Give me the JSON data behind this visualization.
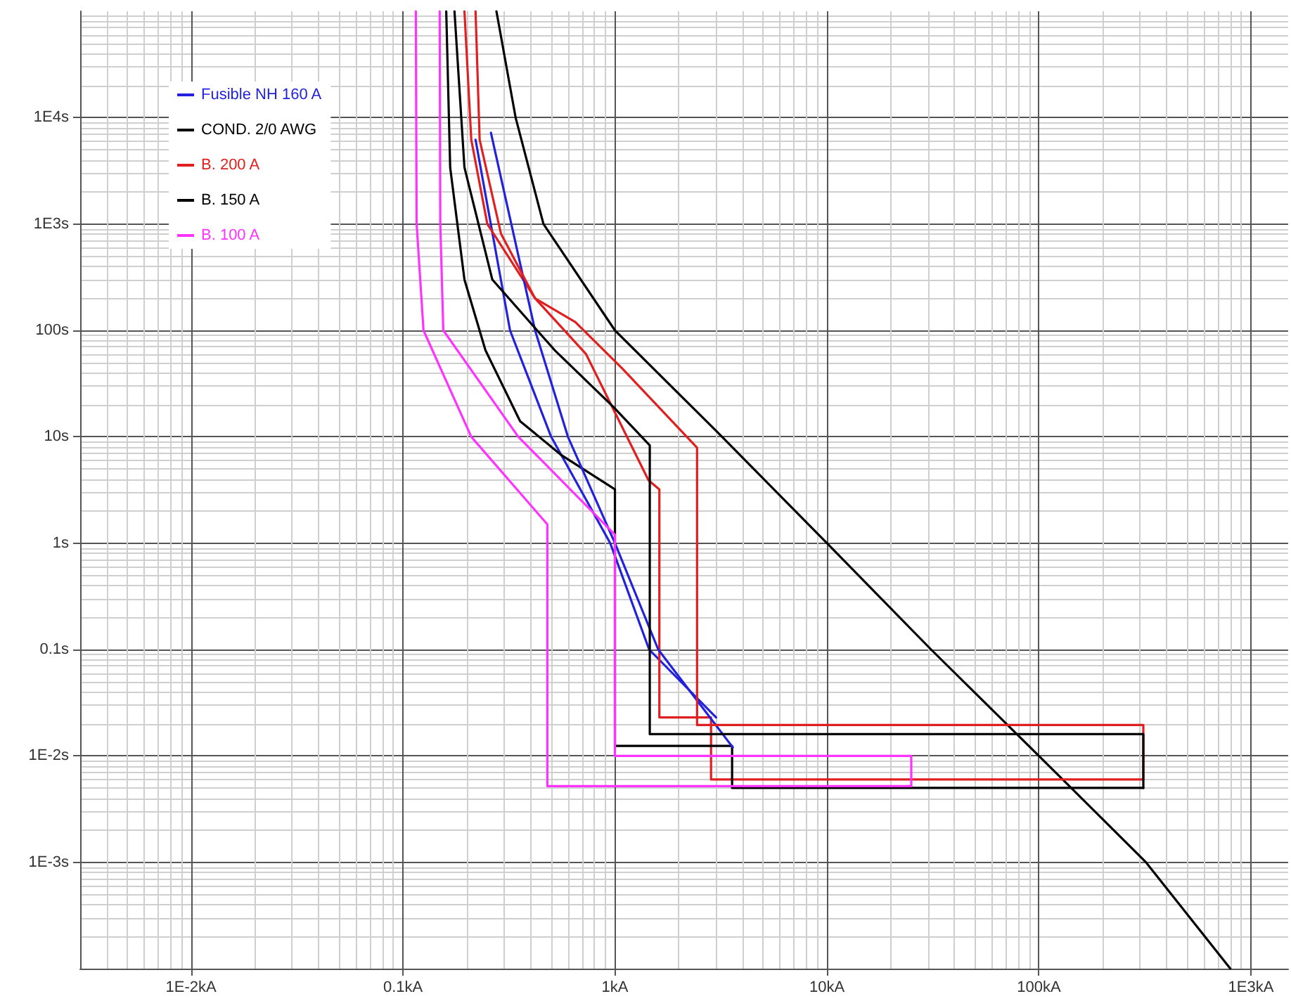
{
  "chart_data": {
    "type": "line",
    "log": "xy",
    "grid": true,
    "legend": "top left",
    "marker": "none",
    "line_style": "solid",
    "xlim": [
      0.003,
      1500
    ],
    "ylim": [
      0.0001,
      100000
    ],
    "xticks": [
      {
        "value": 0.01,
        "label": "1E-2kA"
      },
      {
        "value": 0.1,
        "label": "0.1kA"
      },
      {
        "value": 1,
        "label": "1kA"
      },
      {
        "value": 10,
        "label": "10kA"
      },
      {
        "value": 100,
        "label": "100kA"
      },
      {
        "value": 1000,
        "label": "1E3kA"
      }
    ],
    "yticks": [
      {
        "value": 0.001,
        "label": "1E-3s"
      },
      {
        "value": 0.01,
        "label": "1E-2s"
      },
      {
        "value": 0.1,
        "label": "0.1s"
      },
      {
        "value": 1,
        "label": "1s"
      },
      {
        "value": 10,
        "label": "10s"
      },
      {
        "value": 100,
        "label": "100s"
      },
      {
        "value": 1000,
        "label": "1E3s"
      },
      {
        "value": 10000,
        "label": "1E4s"
      }
    ],
    "series": [
      {
        "name": "Fusible NH 160 A",
        "color": "#2222dd",
        "x": [
          0.22,
          0.32,
          0.5,
          0.95,
          1.45,
          3.0
        ],
        "values": [
          6200,
          100,
          10,
          1,
          0.1,
          0.023
        ]
      },
      {
        "name": "COND. 2/0 AWG",
        "color": "#000000",
        "x": [
          0.276,
          0.34,
          0.46,
          1.0,
          3.2,
          10,
          31,
          100,
          320,
          800
        ],
        "values": [
          100000,
          10000,
          1000,
          100,
          10,
          1,
          0.1,
          0.01,
          0.001,
          0.0001
        ]
      },
      {
        "name": "B. 200 A",
        "color": "#e02020",
        "x": [
          0.195,
          0.21,
          0.25,
          0.42,
          0.73,
          1.44,
          1.62,
          1.62,
          2.84,
          2.84,
          311
        ],
        "values": [
          100000,
          6200,
          1000,
          200,
          60,
          3.9,
          3.2,
          0.023,
          0.023,
          0.006,
          0.006
        ]
      },
      {
        "name": "B. 150 A",
        "color": "#000000",
        "x": [
          0.16,
          0.167,
          0.195,
          0.245,
          0.357,
          0.56,
          1.0,
          1.0,
          3.57,
          3.57,
          311
        ],
        "values": [
          100000,
          3400,
          300,
          65,
          14,
          6.7,
          3.2,
          0.0124,
          0.0124,
          0.005,
          0.005
        ]
      },
      {
        "name": "B. 100 A",
        "color": "#ff33ff",
        "x": [
          0.115,
          0.116,
          0.125,
          0.21,
          0.48,
          0.48,
          25
        ],
        "values": [
          100000,
          1000,
          100,
          10,
          1.5,
          0.0052,
          0.0052
        ]
      },
      {
        "color": "#2222dd",
        "x": [
          0.26,
          0.42,
          0.6,
          1.0,
          1.6,
          3.6
        ],
        "values": [
          7200,
          100,
          10,
          1,
          0.1,
          0.012
        ]
      },
      {
        "color": "#e02020",
        "x": [
          0.22,
          0.23,
          0.29,
          0.42,
          0.65,
          1.08,
          2.44,
          2.44,
          311,
          311
        ],
        "values": [
          100000,
          6200,
          810,
          200,
          120,
          44,
          7.9,
          0.0195,
          0.0195,
          0.006
        ]
      },
      {
        "color": "#000000",
        "x": [
          0.175,
          0.195,
          0.264,
          0.52,
          0.985,
          1.46,
          1.46,
          311,
          311
        ],
        "values": [
          100000,
          3400,
          300,
          65,
          19,
          8.3,
          0.016,
          0.016,
          0.005
        ]
      },
      {
        "color": "#ff33ff",
        "x": [
          0.149,
          0.15,
          0.155,
          0.35,
          1.0,
          1.0,
          25,
          25
        ],
        "values": [
          100000,
          1000,
          100,
          10,
          1.2,
          0.01,
          0.01,
          0.0052
        ]
      }
    ]
  }
}
